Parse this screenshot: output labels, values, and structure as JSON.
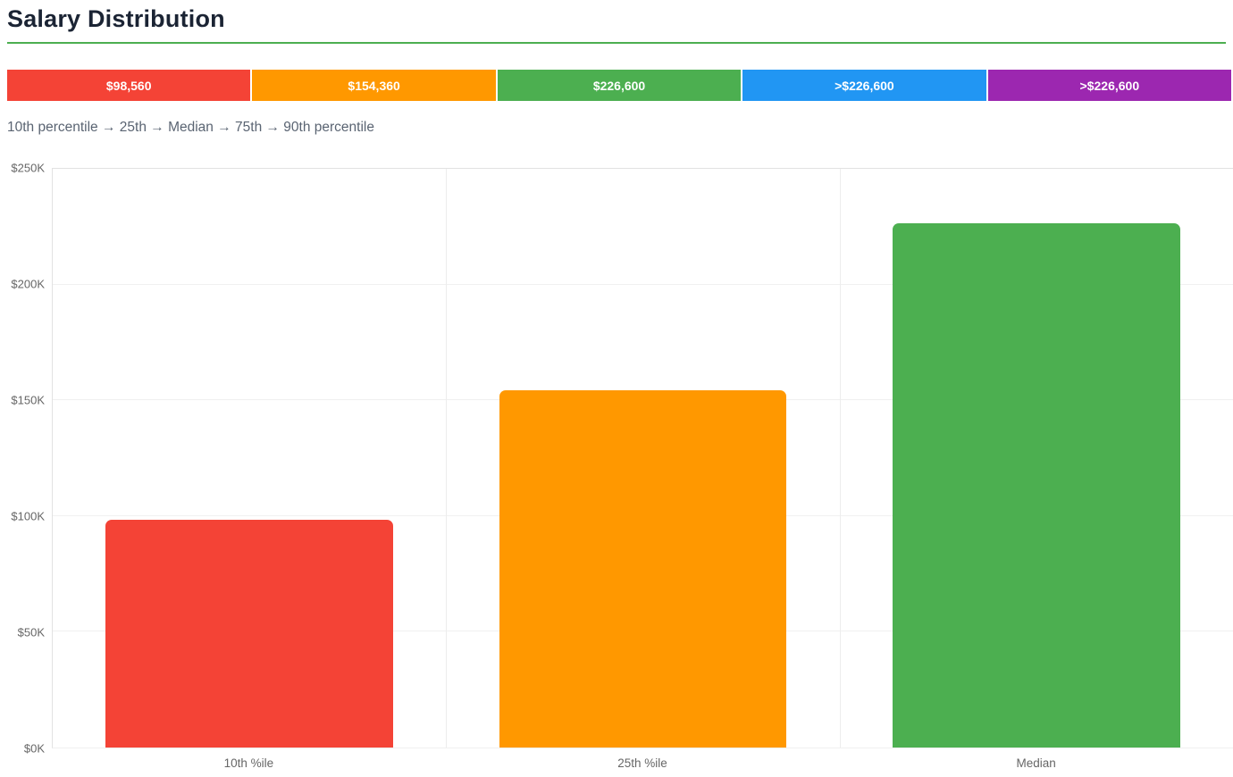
{
  "page": {
    "title": "Salary Distribution",
    "caption": "10th percentile → 25th → Median → 75th → 90th percentile"
  },
  "theme": {
    "accent_green": "#4caf50",
    "title_color": "#1b2434",
    "caption_color": "#5a6472",
    "axis_text_color": "#666666",
    "gridline_color": "#f0f0f0"
  },
  "summary_bar": {
    "segments": [
      {
        "label": "$98,560",
        "color": "#f44336"
      },
      {
        "label": "$154,360",
        "color": "#ff9800"
      },
      {
        "label": "$226,600",
        "color": "#4caf50"
      },
      {
        "label": ">$226,600",
        "color": "#2196f3"
      },
      {
        "label": ">$226,600",
        "color": "#9c27b0"
      }
    ]
  },
  "chart_data": {
    "type": "bar",
    "title": "Salary Distribution",
    "categories": [
      "10th %ile",
      "25th %ile",
      "Median"
    ],
    "values": [
      98560,
      154360,
      226600
    ],
    "colors": [
      "#f44336",
      "#ff9800",
      "#4caf50"
    ],
    "xlabel": "",
    "ylabel": "",
    "ylim": [
      0,
      250000
    ],
    "ytick_step": 50000,
    "ytick_labels": [
      "$0K",
      "$50K",
      "$100K",
      "$150K",
      "$200K",
      "$250K"
    ],
    "grid": true,
    "legend": "none"
  }
}
